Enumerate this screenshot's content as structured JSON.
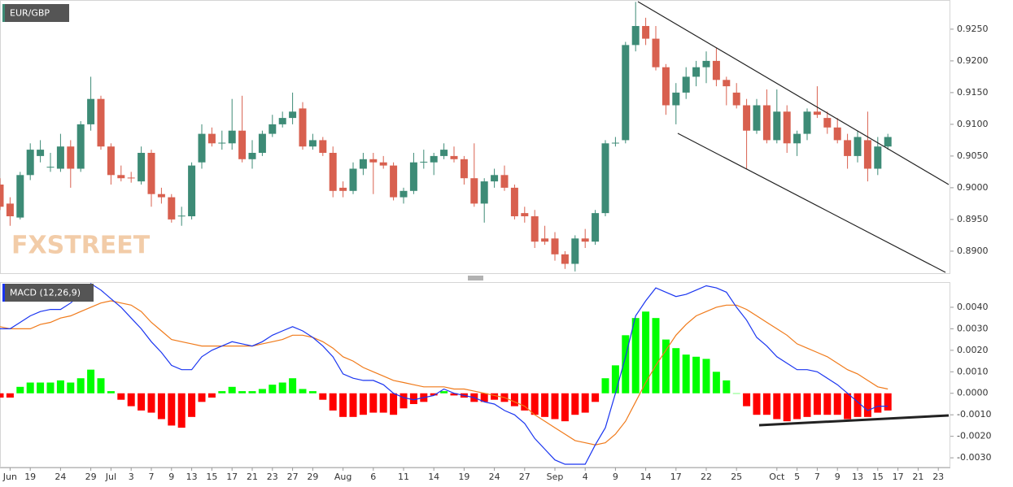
{
  "label": "EUR/GBP",
  "watermark": "FXSTREET",
  "chart_data": [
    {
      "type": "candlestick",
      "categories": [
        null,
        "Jun",
        null,
        "19",
        null,
        null,
        "24",
        null,
        null,
        "29",
        null,
        "Jul",
        null,
        "3",
        null,
        "7",
        null,
        "9",
        null,
        "13",
        null,
        "15",
        null,
        "17",
        null,
        "21",
        null,
        "23",
        null,
        "27",
        null,
        "29",
        null,
        null,
        "Aug",
        null,
        null,
        "6",
        null,
        null,
        "11",
        null,
        null,
        "14",
        null,
        null,
        "19",
        null,
        null,
        "24",
        null,
        null,
        "27",
        null,
        null,
        "Sep",
        null,
        null,
        "4",
        null,
        null,
        "9",
        null,
        null,
        "14",
        null,
        null,
        "17",
        null,
        null,
        "22",
        null,
        null,
        "25",
        null,
        null,
        null,
        "Oct",
        null,
        "5",
        null,
        "7",
        null,
        "9",
        null,
        "13",
        null,
        "15",
        null,
        "17",
        null,
        "21",
        null,
        "23"
      ],
      "open": [
        0.9005,
        0.8975,
        0.8953,
        0.902,
        0.905,
        0.9032,
        0.903,
        0.9065,
        0.903,
        0.91,
        0.914,
        0.9065,
        0.902,
        0.9016,
        0.901,
        0.9055,
        0.899,
        0.8985,
        0.8955,
        0.8955,
        0.904,
        0.9085,
        0.907,
        0.907,
        0.909,
        0.9045,
        0.9055,
        0.9085,
        0.91,
        0.911,
        0.9125,
        0.9065,
        0.9075,
        0.9055,
        0.9,
        0.8995,
        0.903,
        0.9045,
        0.904,
        0.9035,
        0.8985,
        0.8995,
        0.904,
        0.904,
        0.905,
        0.905,
        0.9045,
        0.9015,
        0.8975,
        0.901,
        0.902,
        0.9,
        0.896,
        0.8955,
        0.892,
        0.892,
        0.8895,
        0.888,
        0.892,
        0.8915,
        0.896,
        0.907,
        0.9075,
        0.9225,
        0.9255,
        0.9235,
        0.919,
        0.913,
        0.915,
        0.9175,
        0.919,
        0.92,
        0.917,
        0.915,
        0.913,
        0.909,
        0.913,
        0.9075,
        0.912,
        0.907,
        0.9085,
        0.912,
        0.911,
        0.9095,
        0.9075,
        0.905,
        0.9075,
        0.903,
        0.9065,
        null,
        null,
        null,
        null,
        null
      ],
      "high": [
        0.9015,
        0.8985,
        0.9025,
        0.907,
        0.9075,
        0.9055,
        0.9085,
        0.9075,
        0.9105,
        0.9175,
        0.9145,
        0.907,
        0.9035,
        0.9025,
        0.9065,
        0.906,
        0.9,
        0.899,
        0.897,
        0.904,
        0.91,
        0.9095,
        0.909,
        0.914,
        0.9145,
        0.9075,
        0.909,
        0.9115,
        0.912,
        0.915,
        0.9135,
        0.9085,
        0.908,
        0.9065,
        0.901,
        0.904,
        0.9055,
        0.9055,
        0.905,
        0.904,
        0.9,
        0.9055,
        0.906,
        0.9055,
        0.907,
        0.9065,
        0.905,
        0.907,
        0.9015,
        0.903,
        0.9035,
        0.9005,
        0.897,
        0.8965,
        0.894,
        0.893,
        0.89,
        0.8925,
        0.8935,
        0.8965,
        0.9075,
        0.908,
        0.923,
        0.9293,
        0.9268,
        0.9255,
        0.9195,
        0.9165,
        0.919,
        0.92,
        0.9215,
        0.922,
        0.9175,
        0.9165,
        0.914,
        0.914,
        0.9155,
        0.9155,
        0.913,
        0.909,
        0.9125,
        0.916,
        0.912,
        0.911,
        0.9085,
        0.909,
        0.912,
        0.908,
        0.9085,
        null,
        null,
        null,
        null,
        null
      ],
      "low": [
        0.8965,
        0.894,
        0.895,
        0.9012,
        0.904,
        0.9025,
        0.9025,
        0.9,
        0.9025,
        0.909,
        0.906,
        0.9005,
        0.901,
        0.9008,
        0.9005,
        0.897,
        0.8975,
        0.8945,
        0.894,
        0.895,
        0.903,
        0.9065,
        0.906,
        0.906,
        0.904,
        0.903,
        0.905,
        0.908,
        0.9095,
        0.91,
        0.906,
        0.906,
        0.905,
        0.8985,
        0.8985,
        0.899,
        0.902,
        0.899,
        0.903,
        0.898,
        0.8975,
        0.899,
        0.903,
        0.902,
        0.9045,
        0.904,
        0.9005,
        0.897,
        0.8945,
        0.9,
        0.8995,
        0.895,
        0.8945,
        0.8905,
        0.891,
        0.8885,
        0.8872,
        0.8868,
        0.8905,
        0.891,
        0.8955,
        0.9065,
        0.907,
        0.9215,
        0.9225,
        0.9185,
        0.9115,
        0.91,
        0.914,
        0.916,
        0.9165,
        0.916,
        0.913,
        0.9125,
        0.903,
        0.9085,
        0.907,
        0.907,
        0.9055,
        0.905,
        0.9075,
        0.911,
        0.9085,
        0.907,
        0.903,
        0.904,
        0.901,
        0.902,
        0.906,
        null,
        null,
        null,
        null,
        null
      ],
      "close": [
        0.897,
        0.8955,
        0.902,
        0.906,
        0.906,
        0.9033,
        0.9065,
        0.903,
        0.91,
        0.914,
        0.9065,
        0.902,
        0.9015,
        0.9015,
        0.9055,
        0.899,
        0.8985,
        0.895,
        0.8956,
        0.9035,
        0.9085,
        0.907,
        0.9071,
        0.909,
        0.9045,
        0.9055,
        0.9085,
        0.91,
        0.911,
        0.912,
        0.9065,
        0.9075,
        0.9055,
        0.8995,
        0.8995,
        0.903,
        0.9045,
        0.904,
        0.9035,
        0.8985,
        0.8995,
        0.904,
        0.9041,
        0.905,
        0.906,
        0.9045,
        0.9015,
        0.8975,
        0.901,
        0.902,
        0.9,
        0.8955,
        0.8955,
        0.8915,
        0.8915,
        0.8895,
        0.888,
        0.892,
        0.8915,
        0.896,
        0.907,
        0.9071,
        0.9225,
        0.9255,
        0.9235,
        0.919,
        0.913,
        0.915,
        0.9175,
        0.919,
        0.92,
        0.917,
        0.916,
        0.913,
        0.909,
        0.913,
        0.9075,
        0.912,
        0.907,
        0.9085,
        0.912,
        0.9115,
        0.9095,
        0.9075,
        0.905,
        0.908,
        0.903,
        0.9065,
        0.908,
        null,
        null,
        null,
        null,
        null
      ],
      "up_color": "#3d8b76",
      "down_color": "#d8604f",
      "ylim": [
        0.8864,
        0.9296
      ],
      "yticks": [
        {
          "value": 0.89,
          "label": "0.8900"
        },
        {
          "value": 0.895,
          "label": "0.8950"
        },
        {
          "value": 0.9,
          "label": "0.9000"
        },
        {
          "value": 0.905,
          "label": "0.9050"
        },
        {
          "value": 0.91,
          "label": "0.9100"
        },
        {
          "value": 0.915,
          "label": "0.9150"
        },
        {
          "value": 0.92,
          "label": "0.9200"
        },
        {
          "value": 0.925,
          "label": "0.9250"
        }
      ]
    },
    {
      "type": "macd",
      "title": "MACD (12,26,9)",
      "macd": {
        "color": "#1a35f0",
        "values": [
          0.003,
          0.003,
          0.0033,
          0.0036,
          0.0038,
          0.0039,
          0.0039,
          0.0042,
          0.0046,
          0.0051,
          0.0048,
          0.0044,
          0.004,
          0.0035,
          0.003,
          0.0024,
          0.0019,
          0.0013,
          0.0011,
          0.0011,
          0.0017,
          0.002,
          0.0022,
          0.0024,
          0.0023,
          0.0022,
          0.0024,
          0.0027,
          0.0029,
          0.0031,
          0.0029,
          0.0026,
          0.0022,
          0.0017,
          0.0009,
          0.0007,
          0.0006,
          0.0006,
          0.0004,
          0,
          -0.0002,
          -0.0003,
          -0.0002,
          -0.0001,
          0.0002,
          0,
          -0.0001,
          -0.0002,
          -0.0004,
          -0.0005,
          -0.0008,
          -0.001,
          -0.0014,
          -0.0021,
          -0.0026,
          -0.0031,
          -0.0033,
          -0.0033,
          -0.0033,
          -0.0024,
          -0.0016,
          0,
          0.0017,
          0.0036,
          0.0043,
          0.0049,
          0.0047,
          0.0045,
          0.0046,
          0.0048,
          0.005,
          0.0049,
          0.0047,
          0.004,
          0.0034,
          0.0026,
          0.0022,
          0.0017,
          0.0014,
          0.0011,
          0.0011,
          0.001,
          0.0007,
          0.0004,
          0,
          -0.0004,
          -0.0008,
          -0.0006,
          -0.0006,
          null,
          null,
          null,
          null,
          null
        ]
      },
      "signal": {
        "color": "#f07a1a",
        "values": [
          0.0031,
          0.003,
          0.003,
          0.003,
          0.0032,
          0.0033,
          0.0035,
          0.0036,
          0.0038,
          0.004,
          0.0042,
          0.0043,
          0.0042,
          0.0041,
          0.0038,
          0.0033,
          0.0029,
          0.0025,
          0.0024,
          0.0023,
          0.0022,
          0.0022,
          0.0022,
          0.0022,
          0.0022,
          0.0022,
          0.0023,
          0.0024,
          0.0025,
          0.0027,
          0.0027,
          0.0026,
          0.0024,
          0.0021,
          0.0017,
          0.0015,
          0.0012,
          0.001,
          0.0008,
          0.0006,
          0.0005,
          0.0004,
          0.0003,
          0.0003,
          0.0003,
          0.0002,
          0.0002,
          0.0001,
          0,
          -0.0001,
          -0.0002,
          -0.0004,
          -0.0006,
          -0.001,
          -0.0013,
          -0.0016,
          -0.0019,
          -0.0022,
          -0.0023,
          -0.0024,
          -0.0023,
          -0.0019,
          -0.0013,
          -0.0004,
          0.0005,
          0.0013,
          0.002,
          0.0027,
          0.0032,
          0.0036,
          0.0038,
          0.004,
          0.0041,
          0.0041,
          0.0039,
          0.0036,
          0.0033,
          0.003,
          0.0027,
          0.0023,
          0.0021,
          0.0019,
          0.0017,
          0.0014,
          0.0011,
          0.0009,
          0.0006,
          0.0003,
          0.0002,
          null,
          null,
          null,
          null,
          null
        ]
      },
      "histogram": {
        "positive_color": "#00ff00",
        "negative_color": "#ff0000",
        "values": [
          -0.0002,
          -0.0002,
          0.0003,
          0.0005,
          0.0005,
          0.0005,
          0.0006,
          0.0005,
          0.0007,
          0.0011,
          0.0007,
          0.0001,
          -0.0003,
          -0.0006,
          -0.0008,
          -0.0009,
          -0.0012,
          -0.0015,
          -0.0016,
          -0.0011,
          -0.0004,
          -0.0002,
          0.0001,
          0.0003,
          0.0001,
          0.0001,
          0.0002,
          0.0004,
          0.0005,
          0.0007,
          0.0002,
          0.0001,
          -0.0003,
          -0.0008,
          -0.0011,
          -0.0011,
          -0.001,
          -0.0009,
          -0.0009,
          -0.001,
          -0.0007,
          -0.0005,
          -0.0004,
          -0.0001,
          0.0001,
          -0.0001,
          -0.0002,
          -0.0004,
          -0.0004,
          -0.0003,
          -0.0004,
          -0.0006,
          -0.0008,
          -0.001,
          -0.0011,
          -0.0012,
          -0.0013,
          -0.001,
          -0.0009,
          -0.0004,
          0.0007,
          0.0013,
          0.0027,
          0.0035,
          0.0038,
          0.0035,
          0.0025,
          0.0021,
          0.0018,
          0.0017,
          0.0016,
          0.001,
          0.0006,
          0,
          -0.0006,
          -0.001,
          -0.001,
          -0.0012,
          -0.0013,
          -0.0012,
          -0.0011,
          -0.001,
          -0.001,
          -0.001,
          -0.0012,
          -0.0011,
          -0.0011,
          -0.0009,
          -0.0008,
          null,
          null,
          null,
          null,
          null
        ]
      },
      "ylim": [
        -0.00345,
        0.00517
      ],
      "yticks": [
        {
          "value": -0.003,
          "label": "-0.0030"
        },
        {
          "value": -0.002,
          "label": "-0.0020"
        },
        {
          "value": -0.001,
          "label": "-0.0010"
        },
        {
          "value": 0,
          "label": "0.0000"
        },
        {
          "value": 0.001,
          "label": "0.0010"
        },
        {
          "value": 0.002,
          "label": "0.0020"
        },
        {
          "value": 0.003,
          "label": "0.0030"
        },
        {
          "value": 0.004,
          "label": "0.0040"
        }
      ]
    }
  ]
}
